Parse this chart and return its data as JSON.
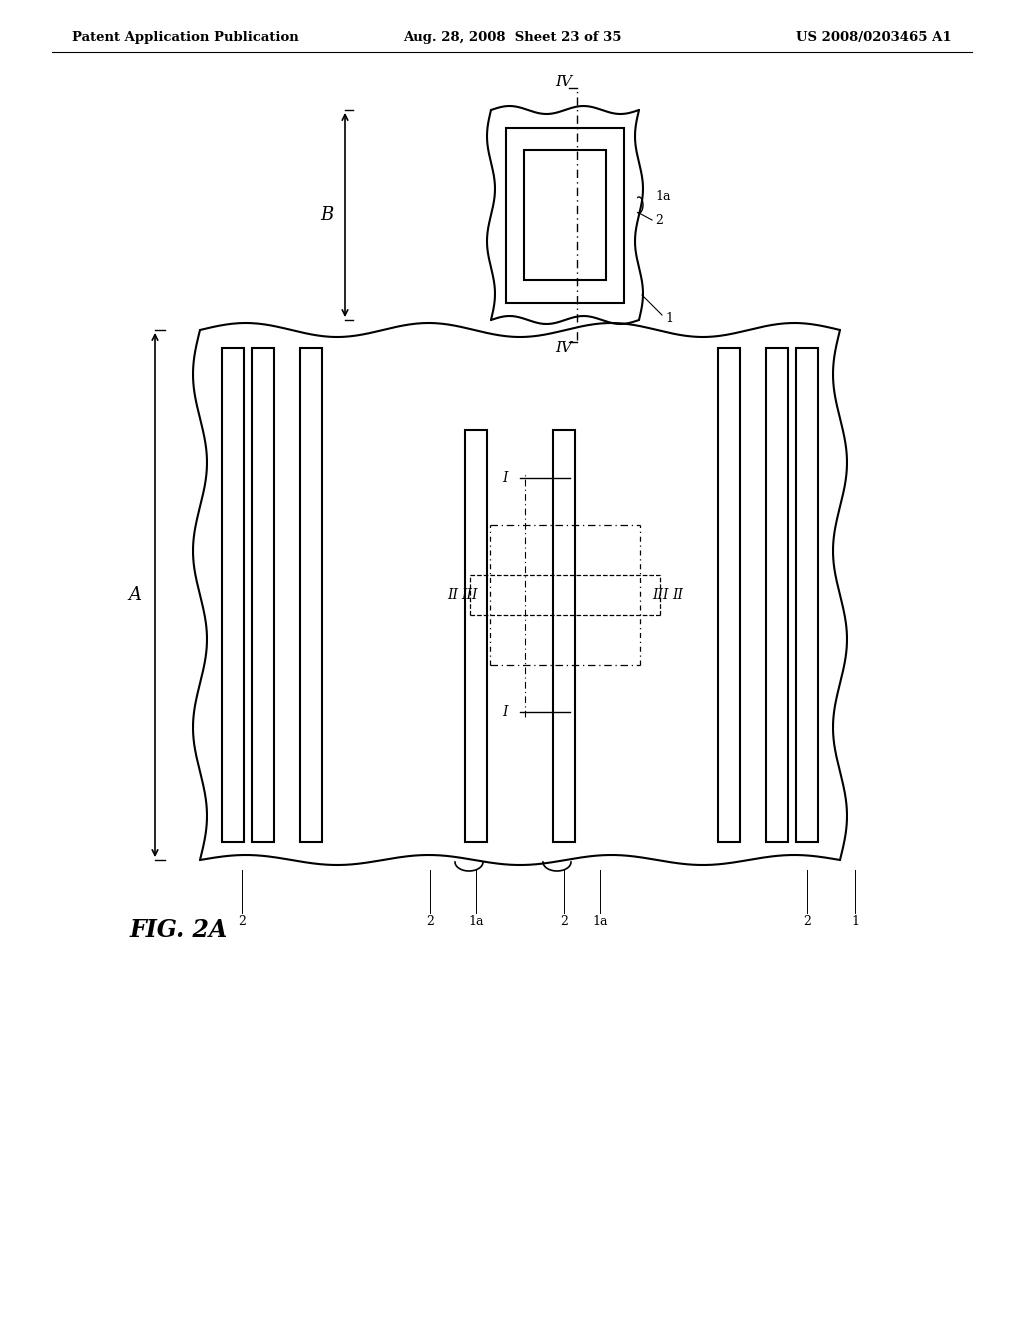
{
  "bg_color": "#ffffff",
  "header_left": "Patent Application Publication",
  "header_mid": "Aug. 28, 2008  Sheet 23 of 35",
  "header_right": "US 2008/0203465 A1",
  "fig_label": "FIG. 2A",
  "arrow_A_label": "A",
  "arrow_B_label": "B",
  "label_1": "1",
  "label_1a": "1a",
  "label_2": "2",
  "label_I": "I",
  "label_II": "II",
  "label_III": "III",
  "label_IV": "IV"
}
